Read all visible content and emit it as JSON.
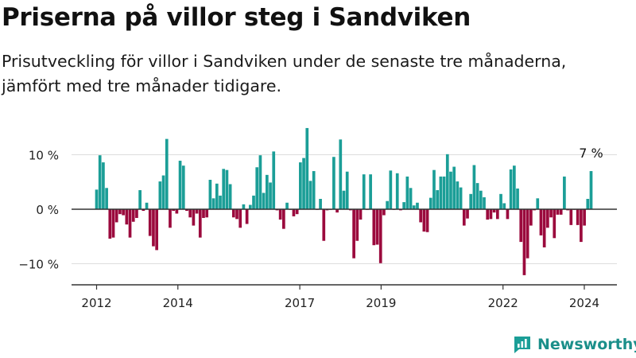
{
  "title": "Priserna på villor steg i Sandviken",
  "subtitle": "Prisutveckling för villor i Sandviken under de senaste tre månaderna, jämfört med tre månader tidigare.",
  "brand": {
    "name": "Newsworthy"
  },
  "colors": {
    "positive": "#1b9e97",
    "negative": "#9b0a3d",
    "grid": "#dddddd",
    "axis": "#333333",
    "brand": "#1b8f8a"
  },
  "chart_data": {
    "type": "bar",
    "x_start": "2012-01",
    "x_end": "2024-03",
    "x_ticks": [
      {
        "value": "2012-01",
        "label": "2012"
      },
      {
        "value": "2014-01",
        "label": "2014"
      },
      {
        "value": "2017-01",
        "label": "2017"
      },
      {
        "value": "2019-01",
        "label": "2019"
      },
      {
        "value": "2022-01",
        "label": "2022"
      },
      {
        "value": "2024-01",
        "label": "2024"
      }
    ],
    "y_ticks": [
      {
        "value": 10,
        "label": "10 %"
      },
      {
        "value": 0,
        "label": "0 %"
      },
      {
        "value": -10,
        "label": "−10 %"
      }
    ],
    "ylim": [
      -13,
      15
    ],
    "annotation": {
      "x": "2024-03",
      "label": "7 %"
    },
    "values": [
      3.6,
      9.9,
      8.6,
      3.9,
      -5.4,
      -5.2,
      -2.4,
      -0.9,
      -1.1,
      -2.8,
      -5.2,
      -2.3,
      -1.6,
      3.5,
      -0.3,
      1.2,
      -4.9,
      -6.8,
      -7.5,
      5.1,
      6.2,
      12.9,
      -3.4,
      -0.3,
      -0.8,
      8.9,
      8.0,
      -0.3,
      -1.5,
      -3.0,
      -0.8,
      -5.2,
      -1.6,
      -1.5,
      5.4,
      2.0,
      4.7,
      2.5,
      7.4,
      7.2,
      4.6,
      -1.5,
      -1.8,
      -3.4,
      0.9,
      -2.7,
      0.8,
      2.5,
      7.7,
      9.9,
      3.0,
      6.3,
      4.9,
      10.6,
      -0.2,
      -1.9,
      -3.6,
      1.2,
      -0.1,
      -1.3,
      -0.9,
      8.6,
      9.4,
      14.9,
      5.2,
      7.0,
      -0.1,
      1.9,
      -5.8,
      -0.2,
      -0.1,
      9.6,
      -0.6,
      12.8,
      3.4,
      6.9,
      -0.2,
      -9.0,
      -5.8,
      -1.9,
      6.4,
      -0.1,
      6.4,
      -6.6,
      -6.5,
      -9.9,
      -1.1,
      1.5,
      7.1,
      -0.1,
      6.6,
      -0.2,
      1.3,
      6.0,
      3.9,
      0.7,
      1.2,
      -2.4,
      -4.1,
      -4.2,
      2.1,
      7.2,
      3.5,
      6.0,
      6.0,
      10.1,
      6.9,
      7.8,
      5.1,
      4.0,
      -3.0,
      -1.7,
      2.8,
      8.1,
      4.8,
      3.4,
      2.2,
      -1.9,
      -1.8,
      -0.6,
      -1.8,
      2.8,
      1.1,
      -1.8,
      7.3,
      8.0,
      3.8,
      -6.0,
      -12.1,
      -9.0,
      -3.0,
      -0.2,
      2.0,
      -4.8,
      -7.0,
      -3.4,
      -1.5,
      -5.3,
      -1.0,
      -1.0,
      6.0,
      -0.2,
      -2.9,
      -0.1,
      -2.9,
      -6.0,
      -3.0,
      1.9,
      7.0
    ]
  }
}
